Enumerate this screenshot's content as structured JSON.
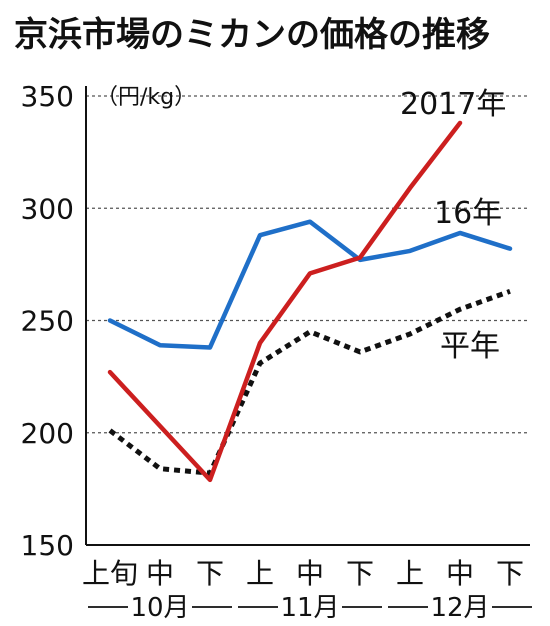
{
  "chart_data": {
    "type": "line",
    "title": "京浜市場のミカンの価格の推移",
    "unit_label": "（円/kg）",
    "ylim": [
      150,
      350
    ],
    "yticks": [
      150,
      200,
      250,
      300,
      350
    ],
    "grid": true,
    "categories": [
      "上旬",
      "中",
      "下",
      "上",
      "中",
      "下",
      "上",
      "中",
      "下"
    ],
    "month_groups": [
      {
        "label": "10月",
        "start": 0,
        "end": 2
      },
      {
        "label": "11月",
        "start": 3,
        "end": 5
      },
      {
        "label": "12月",
        "start": 6,
        "end": 8
      }
    ],
    "series": [
      {
        "name": "2017年",
        "color": "#cc1f1f",
        "dash": false,
        "values": [
          227,
          203,
          179,
          240,
          271,
          278,
          309,
          338,
          null
        ]
      },
      {
        "name": "16年",
        "color": "#1f6fc8",
        "dash": false,
        "values": [
          250,
          239,
          238,
          288,
          294,
          277,
          281,
          289,
          282
        ]
      },
      {
        "name": "平年",
        "color": "#111111",
        "dash": true,
        "values": [
          201,
          184,
          182,
          231,
          245,
          236,
          244,
          255,
          263
        ]
      }
    ]
  }
}
